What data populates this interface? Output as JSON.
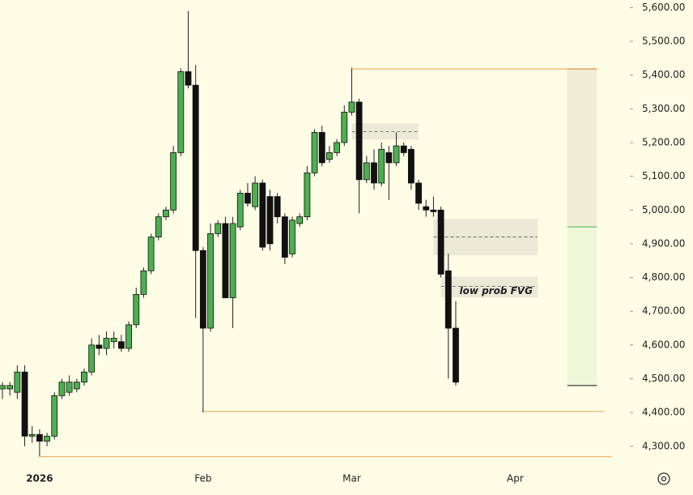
{
  "chart_data": {
    "type": "candlestick",
    "categories": [
      null,
      null,
      null,
      null,
      null,
      "2026",
      null,
      null,
      null,
      null,
      null,
      null,
      null,
      null,
      null,
      null,
      null,
      null,
      null,
      null,
      null,
      null,
      null,
      null,
      null,
      null,
      null,
      "Feb",
      null,
      null,
      null,
      null,
      null,
      null,
      null,
      null,
      null,
      null,
      null,
      null,
      null,
      null,
      null,
      null,
      null,
      null,
      null,
      "Mar",
      null,
      null,
      null,
      null,
      null,
      null,
      null,
      null,
      null,
      null,
      null,
      null,
      null,
      null,
      null,
      null,
      null,
      null,
      null,
      null,
      null,
      "Apr",
      null,
      null,
      null,
      null,
      null,
      null,
      null,
      null,
      null,
      null,
      null,
      null,
      null
    ],
    "open": [
      4470,
      4470,
      4460,
      4520,
      4330,
      4335,
      4315,
      4330,
      4450,
      4460,
      4470,
      4490,
      4520,
      4600,
      4590,
      4610,
      4610,
      4590,
      4660,
      4750,
      4820,
      4920,
      4980,
      5000,
      5170,
      5410,
      5370,
      4880,
      4650,
      4930,
      4960,
      4740,
      4950,
      5050,
      5010,
      5080,
      5040,
      5040,
      4980,
      4870,
      4960,
      4980,
      5110,
      5230,
      5150,
      5170,
      5200,
      5290,
      5320,
      5090,
      5140,
      5080,
      5170,
      5140,
      5190,
      5180,
      5080,
      5010,
      5000,
      5000,
      4820,
      4650,
      null,
      null,
      null,
      null,
      null,
      null,
      null,
      null,
      null,
      null,
      null,
      null,
      null,
      null,
      null,
      null,
      null,
      null,
      null,
      null,
      null
    ],
    "high": [
      4490,
      4490,
      4540,
      4540,
      4360,
      4350,
      4340,
      4460,
      4500,
      4510,
      4500,
      4530,
      4620,
      4630,
      4640,
      4640,
      4630,
      4670,
      4770,
      4830,
      4930,
      4990,
      5010,
      5190,
      5420,
      5590,
      5430,
      4890,
      4960,
      4970,
      4980,
      4980,
      5060,
      5080,
      5100,
      5090,
      5060,
      5050,
      4990,
      4980,
      4990,
      5130,
      5240,
      5250,
      5190,
      5210,
      5310,
      5420,
      5330,
      5160,
      5180,
      5200,
      5190,
      5230,
      5200,
      5190,
      5090,
      5030,
      5040,
      5010,
      4870,
      4730,
      null,
      null,
      null,
      null,
      null,
      null,
      null,
      null,
      null,
      null,
      null,
      null,
      null,
      null,
      null,
      null,
      null,
      null,
      null,
      null,
      null
    ],
    "low": [
      4440,
      4450,
      4440,
      4300,
      4310,
      4270,
      4300,
      4320,
      4440,
      4450,
      4460,
      4480,
      4510,
      4570,
      4570,
      4590,
      4580,
      4580,
      4650,
      4740,
      4810,
      4910,
      4970,
      4990,
      5160,
      5360,
      4680,
      4400,
      4640,
      4920,
      4740,
      4650,
      4940,
      5010,
      5000,
      4880,
      4880,
      4960,
      4840,
      4860,
      4950,
      4970,
      5100,
      5130,
      5140,
      5160,
      5190,
      5280,
      4990,
      5080,
      5060,
      5070,
      5030,
      5130,
      5160,
      5060,
      5000,
      4980,
      4980,
      4800,
      4500,
      4480,
      null,
      null,
      null,
      null,
      null,
      null,
      null,
      null,
      null,
      null,
      null,
      null,
      null,
      null,
      null,
      null,
      null,
      null,
      null,
      null,
      null
    ],
    "close": [
      4480,
      4480,
      4520,
      4330,
      4335,
      4315,
      4330,
      4450,
      4490,
      4490,
      4490,
      4520,
      4600,
      4590,
      4620,
      4620,
      4590,
      4660,
      4750,
      4820,
      4920,
      4980,
      5000,
      5170,
      5410,
      5370,
      4880,
      4650,
      4930,
      4960,
      4740,
      4960,
      5050,
      5020,
      5080,
      4890,
      4900,
      4980,
      4860,
      4970,
      4980,
      5110,
      5230,
      5140,
      5170,
      5200,
      5290,
      5320,
      5090,
      5140,
      5080,
      5180,
      5140,
      5190,
      5170,
      5080,
      5020,
      5000,
      4995,
      4810,
      4650,
      4490,
      null,
      null,
      null,
      null,
      null,
      null,
      null,
      null,
      null,
      null,
      null,
      null,
      null,
      null,
      null,
      null,
      null,
      null,
      null,
      null,
      null
    ],
    "up_color": "#4caf50",
    "down_color": "#111111",
    "ylim": [
      4230,
      5620
    ],
    "yticks": [
      {
        "value": 4300,
        "label": "4,300.00"
      },
      {
        "value": 4400,
        "label": "4,400.00"
      },
      {
        "value": 4500,
        "label": "4,500.00"
      },
      {
        "value": 4600,
        "label": "4,600.00"
      },
      {
        "value": 4700,
        "label": "4,700.00"
      },
      {
        "value": 4800,
        "label": "4,800.00"
      },
      {
        "value": 4900,
        "label": "4,900.00"
      },
      {
        "value": 5000,
        "label": "5,000.00"
      },
      {
        "value": 5100,
        "label": "5,100.00"
      },
      {
        "value": 5200,
        "label": "5,200.00"
      },
      {
        "value": 5300,
        "label": "5,300.00"
      },
      {
        "value": 5400,
        "label": "5,400.00"
      },
      {
        "value": 5500,
        "label": "5,500.00"
      },
      {
        "value": 5600,
        "label": "5,600.00"
      }
    ],
    "levels": [
      {
        "value": 5418,
        "from": 47,
        "to": 80,
        "color": "#e8a04a"
      },
      {
        "value": 4403,
        "from": 27,
        "to": 81,
        "color": "#e8a04a"
      },
      {
        "value": 4269,
        "from": 5,
        "to": 82,
        "color": "#e8a04a"
      }
    ],
    "zones": [
      {
        "top": 5257,
        "bottom": 5209,
        "mid": 5232,
        "from": 47,
        "to": 56
      },
      {
        "top": 4974,
        "bottom": 4866,
        "mid": 4920,
        "from": 58,
        "to": 72
      },
      {
        "top": 4803,
        "bottom": 4741,
        "mid": 4774,
        "from": 59,
        "to": 72,
        "label": "low prob FVG"
      }
    ],
    "position": {
      "from": 76,
      "to": 80,
      "target": 5418,
      "entry": 4950,
      "stop": 4480
    }
  }
}
